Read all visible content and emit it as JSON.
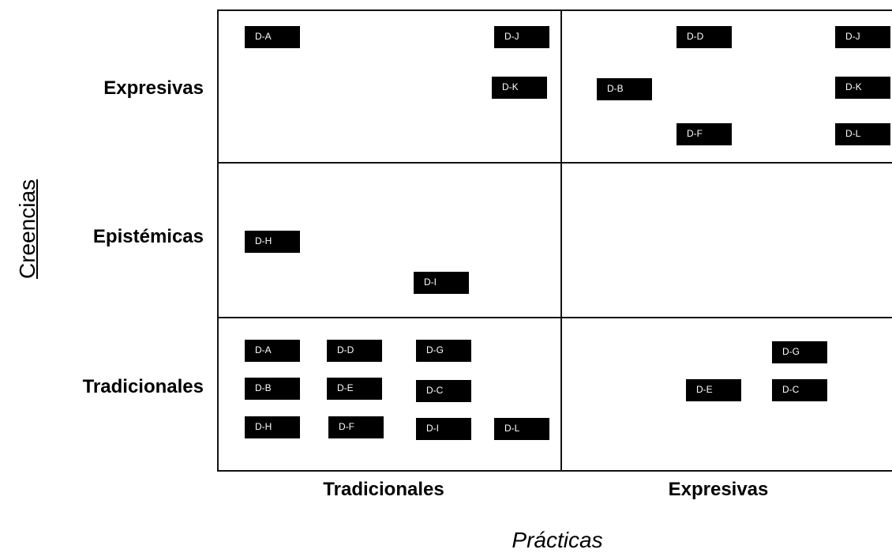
{
  "axes": {
    "x_title": "Prácticas",
    "y_title": "Creencias"
  },
  "rows": [
    "Expresivas",
    "Epistémicas",
    "Tradicionales"
  ],
  "columns": [
    "Tradicionales",
    "Expresivas"
  ],
  "cells": {
    "expresivas_tradicionales": [
      "D-A",
      "D-J",
      "D-K"
    ],
    "expresivas_expresivas": [
      "D-D",
      "D-J",
      "D-B",
      "D-K",
      "D-F",
      "D-L"
    ],
    "epistemicas_tradicionales": [
      "D-H",
      "D-I"
    ],
    "epistemicas_expresivas": [],
    "tradicionales_tradicionales": [
      "D-A",
      "D-D",
      "D-G",
      "D-B",
      "D-E",
      "D-C",
      "D-H",
      "D-F",
      "D-I",
      "D-L"
    ],
    "tradicionales_expresivas": [
      "D-G",
      "D-E",
      "D-C"
    ]
  }
}
